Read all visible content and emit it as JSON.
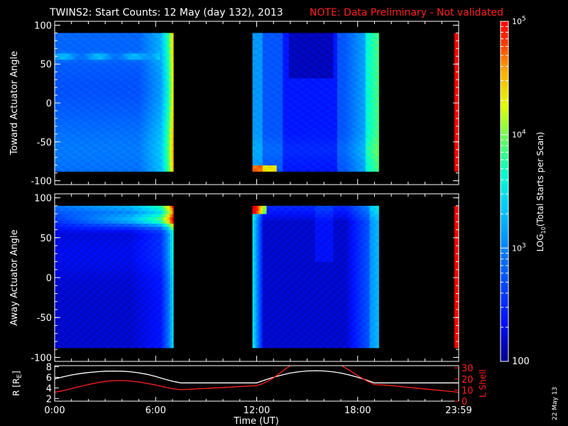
{
  "header": {
    "title": "TWINS2: Start Counts: 12 May (day 132), 2013",
    "note": "NOTE: Data Preliminary - Not validated"
  },
  "footer": {
    "date_stamp": "22 May 13"
  },
  "colors": {
    "background": "#000000",
    "axes": "#ffffff",
    "note_text": "#ff2020",
    "lshell_line": "#ff2020",
    "radius_line": "#ffffff"
  },
  "chart_data": [
    {
      "type": "heatmap",
      "ylabel": "Toward Actuator Angle",
      "ylim": [
        -105,
        105
      ],
      "yticks": [
        -100,
        -50,
        0,
        50,
        100
      ],
      "xlim": [
        0,
        24
      ],
      "xticks": [
        0,
        6,
        12,
        18,
        24
      ],
      "data_segments_ut_hours": [
        [
          0,
          7.05
        ],
        [
          11.75,
          19.25
        ],
        [
          23.75,
          24
        ]
      ],
      "angle_range": [
        -88,
        90
      ],
      "notes": "Cyan-blue background (~10^2.8 counts); bright band near +60 deg before 6:00; yellow-red rise toward 7:00; enhanced red near -80 deg around 12:00; dark blue 14:00-17:00; yellow-orange toward 19:00"
    },
    {
      "type": "heatmap",
      "ylabel": "Away Actuator Angle",
      "ylim": [
        -105,
        105
      ],
      "yticks": [
        -100,
        -50,
        0,
        50,
        100
      ],
      "xlim": [
        0,
        24
      ],
      "xticks": [
        0,
        6,
        12,
        18,
        24
      ],
      "data_segments_ut_hours": [
        [
          0,
          7.05
        ],
        [
          11.75,
          19.25
        ],
        [
          23.75,
          24
        ]
      ],
      "angle_range": [
        -88,
        90
      ],
      "notes": "Dark blue body (~10^2.2); orange-red band near +70 to +90 deg increasing toward 7:00; yellow-red at start of 12:00 segment; cyan-green toward 19:00"
    },
    {
      "type": "line",
      "xlabel": "Time (UT)",
      "ylabel_left": "R [R_E]",
      "ylabel_right": "L Shell",
      "xlim": [
        0,
        24
      ],
      "xtick_labels": [
        "0:00",
        "6:00",
        "12:00",
        "18:00",
        "23:59"
      ],
      "xtick_values": [
        0,
        6,
        12,
        18,
        24
      ],
      "ylim_left": [
        1.5,
        8.2
      ],
      "yticks_left": [
        2,
        4,
        6,
        8
      ],
      "ylim_right": [
        0,
        32
      ],
      "yticks_right": [
        0,
        10,
        20,
        30
      ],
      "series": [
        {
          "name": "R",
          "axis": "left",
          "color": "#ffffff",
          "x": [
            0,
            0.5,
            1,
            1.5,
            2,
            2.5,
            3,
            3.5,
            4,
            4.5,
            5,
            5.5,
            6,
            6.5,
            7,
            7.5,
            8,
            10,
            12,
            12.5,
            13,
            13.5,
            14,
            14.5,
            15,
            15.5,
            16,
            16.5,
            17,
            17.5,
            18,
            18.5,
            19,
            19.5,
            20,
            22,
            24
          ],
          "y": [
            5.7,
            6.1,
            6.45,
            6.7,
            6.9,
            7.05,
            7.15,
            7.18,
            7.15,
            7.05,
            6.85,
            6.55,
            6.15,
            5.7,
            5.25,
            4.95,
            4.95,
            4.95,
            4.95,
            5.5,
            6.0,
            6.45,
            6.8,
            7.05,
            7.2,
            7.25,
            7.2,
            7.05,
            6.8,
            6.45,
            6.0,
            5.5,
            4.95,
            4.95,
            4.95,
            4.95,
            4.95
          ]
        },
        {
          "name": "L Shell",
          "axis": "right",
          "color": "#ff2020",
          "x": [
            0,
            0.5,
            1,
            1.5,
            2,
            2.5,
            3,
            3.5,
            4,
            4.5,
            5,
            5.5,
            6,
            6.5,
            7,
            7.5,
            10,
            12,
            12.3,
            12.6,
            13,
            13.4,
            13.8,
            14.0
          ],
          "y": [
            8.0,
            9.5,
            11.3,
            13.2,
            15.0,
            16.6,
            17.8,
            18.5,
            18.6,
            18.2,
            17.3,
            16.0,
            14.5,
            12.8,
            11.2,
            10.3,
            12.3,
            14.0,
            15.5,
            17.5,
            21.0,
            25.5,
            30.0,
            32.0
          ]
        },
        {
          "name": "L Shell (late)",
          "axis": "right",
          "color": "#ff2020",
          "x": [
            17.05,
            17.5,
            18,
            18.5,
            19,
            19.5,
            20,
            22,
            24
          ],
          "y": [
            32.0,
            28.0,
            23.0,
            18.5,
            15.0,
            14.6,
            14.0,
            11.0,
            8.0
          ]
        }
      ]
    }
  ],
  "colorbar": {
    "label_prefix": "LOG",
    "label_sub": "10",
    "label_suffix": "(Total Starts per Scan)",
    "tick_bases": [
      "10",
      "10",
      "10"
    ],
    "tick_exps": [
      "5",
      "4",
      "3"
    ],
    "tick_log_values": [
      5,
      4,
      3
    ],
    "bottom_label": "100",
    "bottom_log_value": 2,
    "range_log": [
      2,
      5
    ]
  }
}
